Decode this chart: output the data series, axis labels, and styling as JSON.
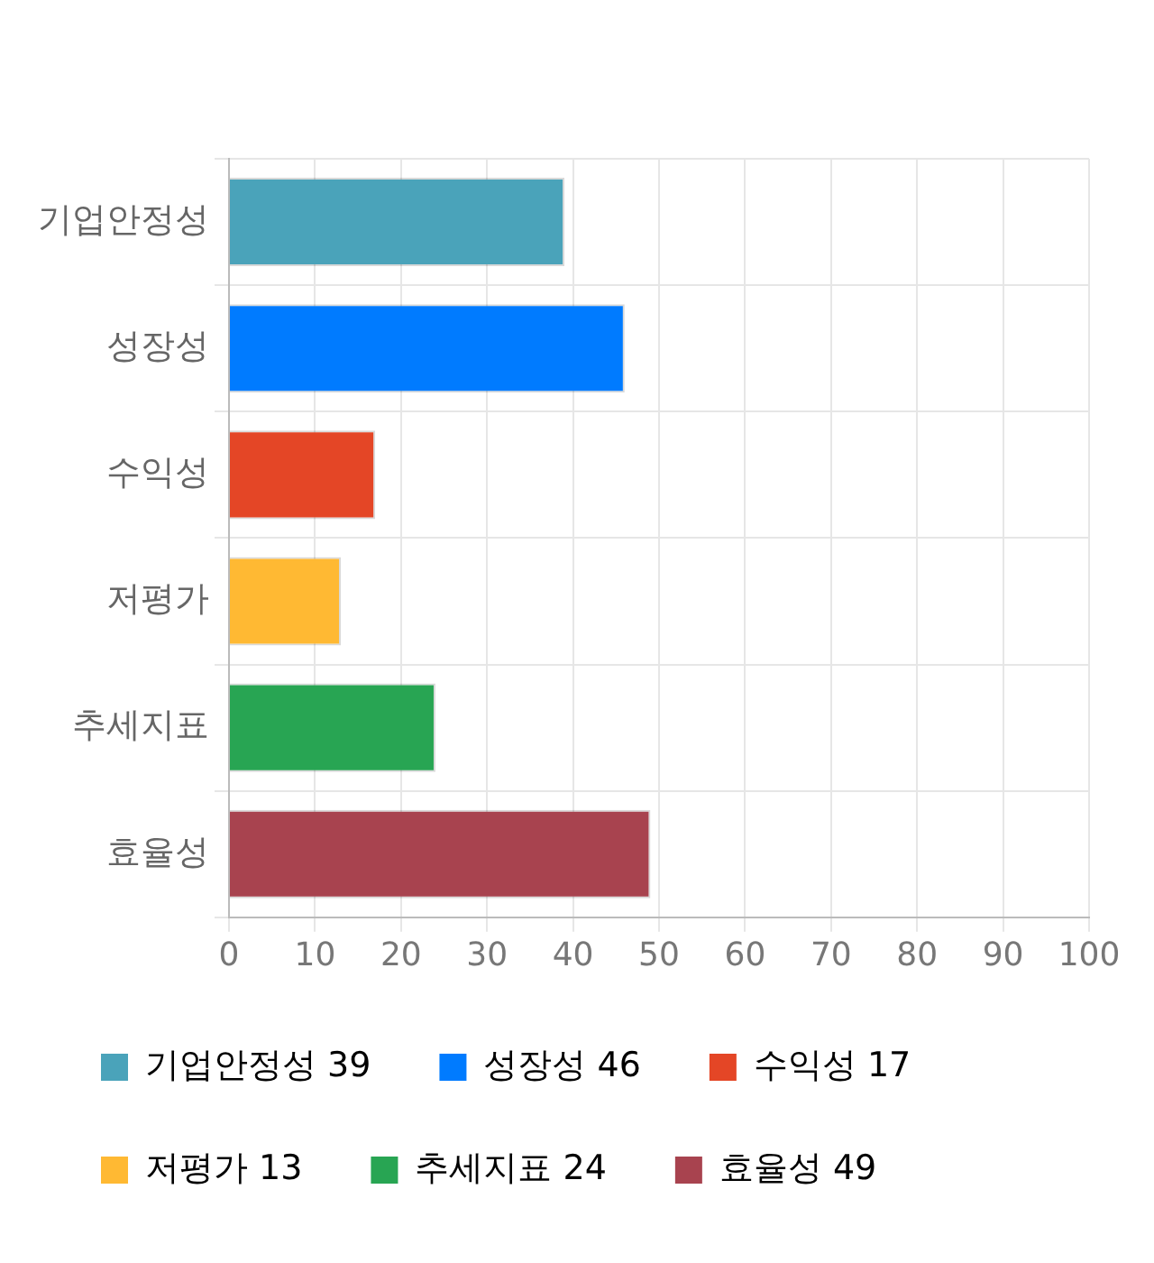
{
  "chart_data": {
    "type": "bar",
    "orientation": "horizontal",
    "stacked": true,
    "categories": [
      "기업안정성",
      "성장성",
      "수익성",
      "저평가",
      "추세지표",
      "효율성"
    ],
    "series": [
      {
        "name": "기업안정성 39",
        "color": "#4aa3ba",
        "values": [
          39,
          null,
          null,
          null,
          null,
          null
        ]
      },
      {
        "name": "성장성 46",
        "color": "#007bff",
        "values": [
          null,
          46,
          null,
          null,
          null,
          null
        ]
      },
      {
        "name": "수익성 17",
        "color": "#e44626",
        "values": [
          null,
          null,
          17,
          null,
          null,
          null
        ]
      },
      {
        "name": "저평가 13",
        "color": "#ffb933",
        "values": [
          null,
          null,
          null,
          13,
          null,
          null
        ]
      },
      {
        "name": "추세지표 24",
        "color": "#28a553",
        "values": [
          null,
          null,
          null,
          null,
          24,
          null
        ]
      },
      {
        "name": "효율성 49",
        "color": "#a8434f",
        "values": [
          null,
          null,
          null,
          null,
          null,
          49
        ]
      }
    ],
    "xlim": [
      0,
      100
    ],
    "xticks": [
      0,
      10,
      20,
      30,
      40,
      50,
      60,
      70,
      80,
      90,
      100
    ],
    "grid": true,
    "legend": "bottom"
  }
}
